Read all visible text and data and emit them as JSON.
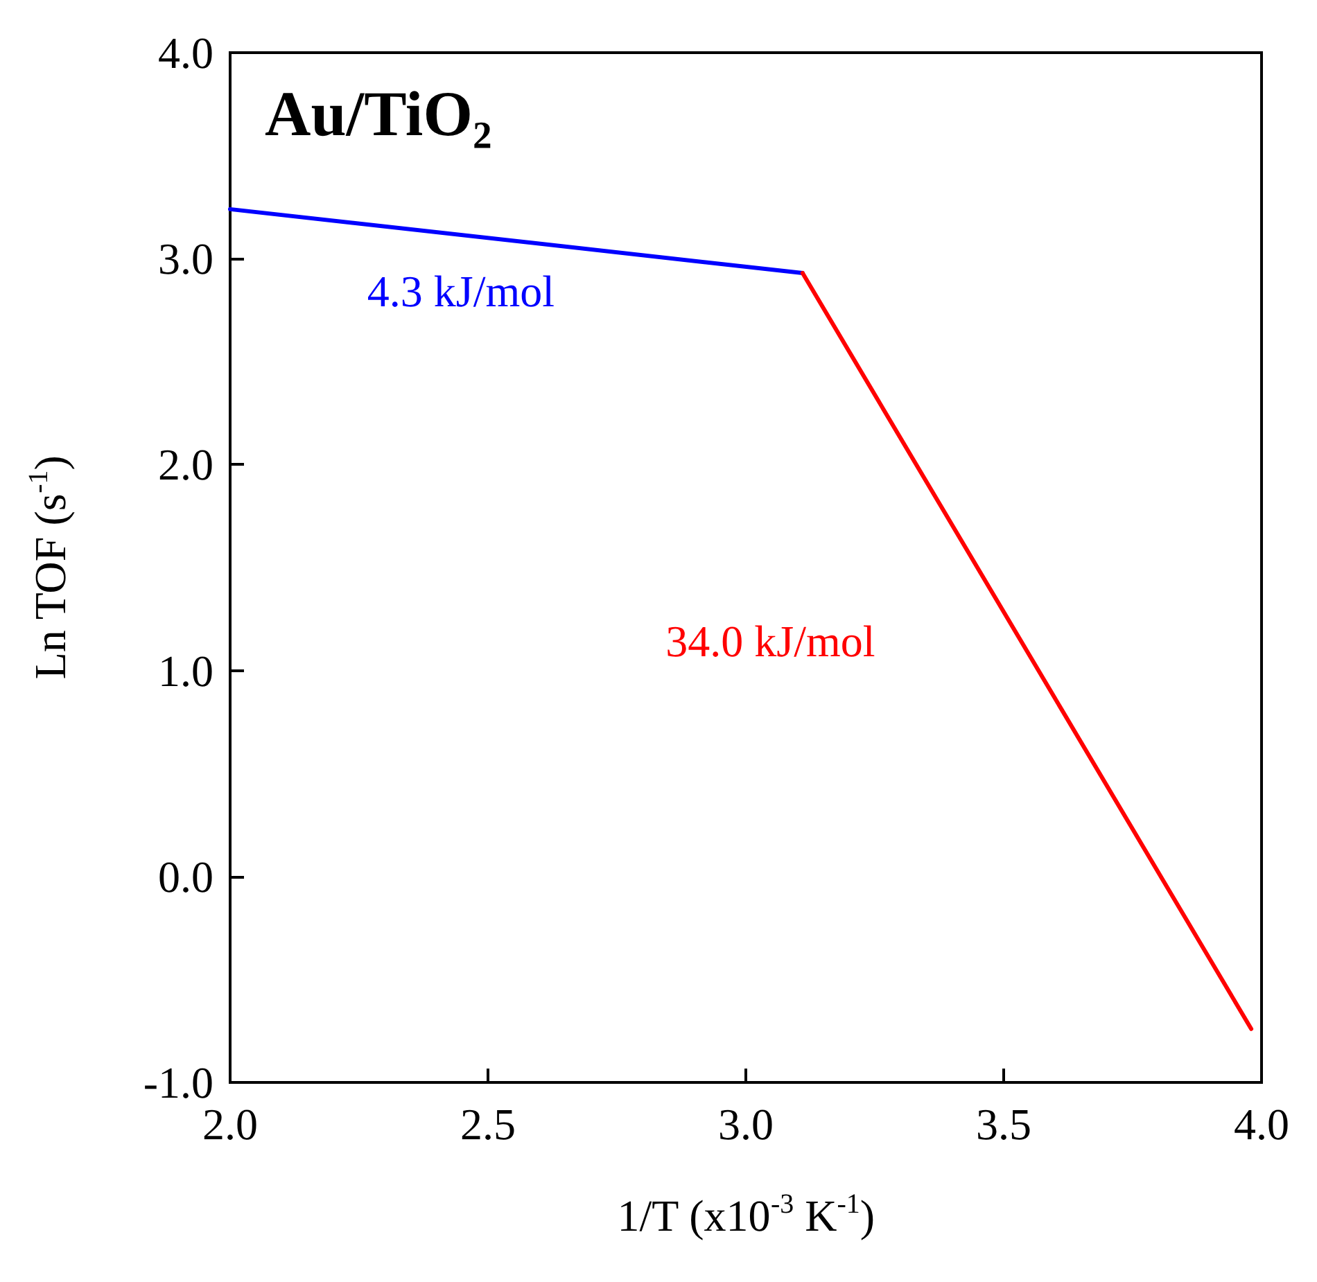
{
  "chart_data": {
    "type": "line",
    "title": "Au/TiO₂",
    "xlabel": "1/T (x10$^{-3}$ K$^{-1}$)",
    "ylabel": "Ln TOF (s$^{-1}$)",
    "series": [
      {
        "color": "#0000ff",
        "x": [
          2.0,
          3.11
        ],
        "values": [
          3.24,
          2.93
        ]
      },
      {
        "color": "#ff0000",
        "x": [
          3.11,
          3.98
        ],
        "values": [
          2.93,
          -0.74
        ]
      }
    ],
    "annotations": [
      "4.3 kJ/mol",
      "34.0 kJ/mol"
    ],
    "xlim": [
      2.0,
      4.0
    ],
    "ylim": [
      -1.0,
      4.0
    ],
    "xticks": [
      {
        "value": 2,
        "label": "2.0"
      },
      {
        "value": 2.5,
        "label": "2.5"
      },
      {
        "value": 3,
        "label": "3.0"
      },
      {
        "value": 3.5,
        "label": "3.5"
      },
      {
        "value": 4,
        "label": "4.0"
      }
    ],
    "yticks": [
      {
        "value": -1,
        "label": "-1.0"
      },
      {
        "value": 0,
        "label": "0.0"
      },
      {
        "value": 1,
        "label": "1.0"
      },
      {
        "value": 2,
        "label": "2.0"
      },
      {
        "value": 3,
        "label": "3.0"
      },
      {
        "value": 4,
        "label": "4.0"
      }
    ],
    "grid": false,
    "marker": "none",
    "line_style": "solid"
  }
}
